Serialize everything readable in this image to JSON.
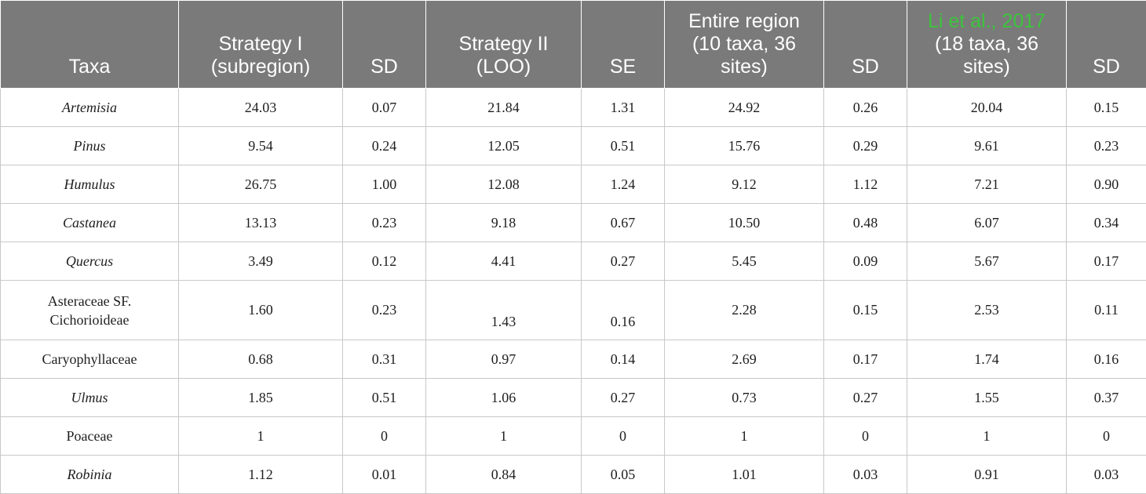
{
  "header": {
    "taxa": "Taxa",
    "strategy1_line1": "Strategy I",
    "strategy1_line2": "(subregion)",
    "sd1": "SD",
    "strategy2_line1": "Strategy II",
    "strategy2_line2": "(LOO)",
    "se": "SE",
    "entire_line1": "Entire region",
    "entire_line2": "(10 taxa, 36",
    "entire_line3": "sites)",
    "sd2": "SD",
    "li_link": "Li et al., 2017",
    "li_line2": "(18 taxa, 36",
    "li_line3": "sites)",
    "sd3": "SD"
  },
  "colors": {
    "header_bg": "#7a7a7a",
    "link": "#3cc43c",
    "border": "#c8c8c8"
  },
  "rows": [
    {
      "taxa": "Artemisia",
      "s1": "24.03",
      "sd1": "0.07",
      "s2": "21.84",
      "se": "1.31",
      "entire": "24.92",
      "sd2": "0.26",
      "li": "20.04",
      "sd3": "0.15"
    },
    {
      "taxa": "Pinus",
      "s1": "9.54",
      "sd1": "0.24",
      "s2": "12.05",
      "se": "0.51",
      "entire": "15.76",
      "sd2": "0.29",
      "li": "9.61",
      "sd3": "0.23"
    },
    {
      "taxa": "Humulus",
      "s1": "26.75",
      "sd1": "1.00",
      "s2": "12.08",
      "se": "1.24",
      "entire": "9.12",
      "sd2": "1.12",
      "li": "7.21",
      "sd3": "0.90"
    },
    {
      "taxa": "Castanea",
      "s1": "13.13",
      "sd1": "0.23",
      "s2": "9.18",
      "se": "0.67",
      "entire": "10.50",
      "sd2": "0.48",
      "li": "6.07",
      "sd3": "0.34"
    },
    {
      "taxa": "Quercus",
      "s1": "3.49",
      "sd1": "0.12",
      "s2": "4.41",
      "se": "0.27",
      "entire": "5.45",
      "sd2": "0.09",
      "li": "5.67",
      "sd3": "0.17"
    },
    {
      "taxa_line1": "Asteraceae SF.",
      "taxa_line2": "Cichorioideae",
      "s1": "1.60",
      "sd1": "0.23",
      "s2": "1.43",
      "se": "0.16",
      "entire": "2.28",
      "sd2": "0.15",
      "li": "2.53",
      "sd3": "0.11"
    },
    {
      "taxa": "Caryophyllaceae",
      "s1": "0.68",
      "sd1": "0.31",
      "s2": "0.97",
      "se": "0.14",
      "entire": "2.69",
      "sd2": "0.17",
      "li": "1.74",
      "sd3": "0.16"
    },
    {
      "taxa": "Ulmus",
      "s1": "1.85",
      "sd1": "0.51",
      "s2": "1.06",
      "se": "0.27",
      "entire": "0.73",
      "sd2": "0.27",
      "li": "1.55",
      "sd3": "0.37"
    },
    {
      "taxa": "Poaceae",
      "s1": "1",
      "sd1": "0",
      "s2": "1",
      "se": "0",
      "entire": "1",
      "sd2": "0",
      "li": "1",
      "sd3": "0"
    },
    {
      "taxa": "Robinia",
      "s1": "1.12",
      "sd1": "0.01",
      "s2": "0.84",
      "se": "0.05",
      "entire": "1.01",
      "sd2": "0.03",
      "li": "0.91",
      "sd3": "0.03"
    }
  ]
}
